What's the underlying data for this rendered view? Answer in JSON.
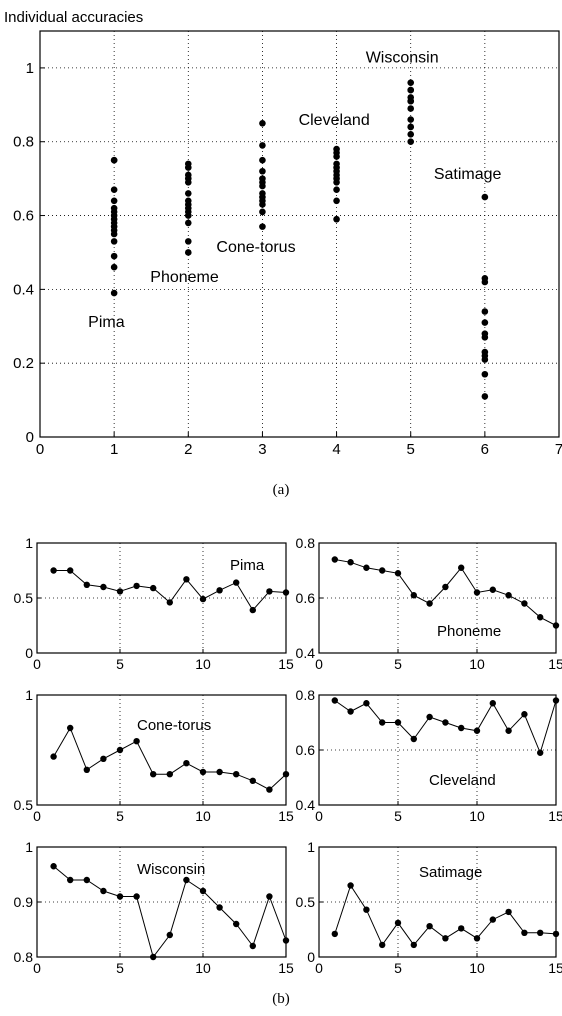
{
  "panel_a": {
    "caption": "(a)",
    "chart_data": {
      "type": "scatter",
      "ylabel": "Individual accuracies",
      "xlim": [
        0,
        7
      ],
      "ylim": [
        0,
        1.1
      ],
      "xticks": [
        "0",
        "1",
        "2",
        "3",
        "4",
        "5",
        "6",
        "7"
      ],
      "yticks": [
        "0",
        "0.2",
        "0.4",
        "0.6",
        "0.8",
        "1"
      ],
      "grid": true,
      "series": [
        {
          "name": "Pima",
          "x": 1,
          "values": [
            0.75,
            0.75,
            0.67,
            0.64,
            0.62,
            0.61,
            0.6,
            0.59,
            0.58,
            0.57,
            0.56,
            0.55,
            0.53,
            0.49,
            0.46,
            0.39
          ]
        },
        {
          "name": "Phoneme",
          "x": 2,
          "values": [
            0.74,
            0.73,
            0.71,
            0.7,
            0.69,
            0.66,
            0.64,
            0.63,
            0.62,
            0.61,
            0.6,
            0.58,
            0.53,
            0.5
          ]
        },
        {
          "name": "Cone-torus",
          "x": 3,
          "values": [
            0.85,
            0.79,
            0.75,
            0.72,
            0.7,
            0.69,
            0.68,
            0.66,
            0.65,
            0.64,
            0.63,
            0.61,
            0.57
          ]
        },
        {
          "name": "Cleveland",
          "x": 4,
          "values": [
            0.78,
            0.77,
            0.76,
            0.74,
            0.73,
            0.72,
            0.71,
            0.7,
            0.69,
            0.67,
            0.64,
            0.59
          ]
        },
        {
          "name": "Wisconsin",
          "x": 5,
          "values": [
            0.96,
            0.94,
            0.94,
            0.92,
            0.91,
            0.91,
            0.89,
            0.86,
            0.84,
            0.84,
            0.82,
            0.8
          ]
        },
        {
          "name": "Satimage",
          "x": 6,
          "values": [
            0.65,
            0.43,
            0.42,
            0.34,
            0.31,
            0.28,
            0.27,
            0.23,
            0.22,
            0.21,
            0.17,
            0.11
          ]
        }
      ]
    }
  },
  "panel_b": {
    "caption": "(b)",
    "chart_data": [
      {
        "type": "line",
        "title": "Pima",
        "x": [
          1,
          2,
          3,
          4,
          5,
          6,
          7,
          8,
          9,
          10,
          11,
          12,
          13,
          14,
          15
        ],
        "values": [
          0.75,
          0.75,
          0.62,
          0.6,
          0.56,
          0.61,
          0.59,
          0.46,
          0.67,
          0.49,
          0.57,
          0.64,
          0.39,
          0.56,
          0.55
        ],
        "ylim": [
          0,
          1
        ],
        "yticks": [
          "0",
          "0.5",
          "1"
        ],
        "xticks": [
          "0",
          "5",
          "10",
          "15"
        ]
      },
      {
        "type": "line",
        "title": "Phoneme",
        "x": [
          1,
          2,
          3,
          4,
          5,
          6,
          7,
          8,
          9,
          10,
          11,
          12,
          13,
          14,
          15
        ],
        "values": [
          0.74,
          0.73,
          0.71,
          0.7,
          0.69,
          0.61,
          0.58,
          0.64,
          0.71,
          0.62,
          0.63,
          0.61,
          0.58,
          0.53,
          0.5
        ],
        "ylim": [
          0.4,
          0.8
        ],
        "yticks": [
          "0.4",
          "0.6",
          "0.8"
        ],
        "xticks": [
          "0",
          "5",
          "10",
          "15"
        ]
      },
      {
        "type": "line",
        "title": "Cone-torus",
        "x": [
          1,
          2,
          3,
          4,
          5,
          6,
          7,
          8,
          9,
          10,
          11,
          12,
          13,
          14,
          15
        ],
        "values": [
          0.72,
          0.85,
          0.66,
          0.71,
          0.75,
          0.79,
          0.64,
          0.64,
          0.69,
          0.65,
          0.65,
          0.64,
          0.61,
          0.57,
          0.64
        ],
        "ylim": [
          0.5,
          1
        ],
        "yticks": [
          "0.5",
          "1"
        ],
        "xticks": [
          "0",
          "5",
          "10",
          "15"
        ]
      },
      {
        "type": "line",
        "title": "Cleveland",
        "x": [
          1,
          2,
          3,
          4,
          5,
          6,
          7,
          8,
          9,
          10,
          11,
          12,
          13,
          14,
          15
        ],
        "values": [
          0.78,
          0.74,
          0.77,
          0.7,
          0.7,
          0.64,
          0.72,
          0.7,
          0.68,
          0.67,
          0.77,
          0.67,
          0.73,
          0.59,
          0.78
        ],
        "ylim": [
          0.4,
          0.8
        ],
        "yticks": [
          "0.4",
          "0.6",
          "0.8"
        ],
        "xticks": [
          "0",
          "5",
          "10",
          "15"
        ]
      },
      {
        "type": "line",
        "title": "Wisconsin",
        "x": [
          1,
          2,
          3,
          4,
          5,
          6,
          7,
          8,
          9,
          10,
          11,
          12,
          13,
          14,
          15
        ],
        "values": [
          0.965,
          0.94,
          0.94,
          0.92,
          0.91,
          0.91,
          0.8,
          0.84,
          0.94,
          0.92,
          0.89,
          0.86,
          0.82,
          0.91,
          0.83
        ],
        "ylim": [
          0.8,
          1
        ],
        "yticks": [
          "0.8",
          "0.9",
          "1"
        ],
        "xticks": [
          "0",
          "5",
          "10",
          "15"
        ]
      },
      {
        "type": "line",
        "title": "Satimage",
        "x": [
          1,
          2,
          3,
          4,
          5,
          6,
          7,
          8,
          9,
          10,
          11,
          12,
          13,
          14,
          15
        ],
        "values": [
          0.21,
          0.65,
          0.43,
          0.11,
          0.31,
          0.11,
          0.28,
          0.17,
          0.26,
          0.17,
          0.34,
          0.41,
          0.22,
          0.22,
          0.21
        ],
        "ylim": [
          0,
          1
        ],
        "yticks": [
          "0",
          "0.5",
          "1"
        ],
        "xticks": [
          "0",
          "5",
          "10",
          "15"
        ]
      }
    ]
  }
}
